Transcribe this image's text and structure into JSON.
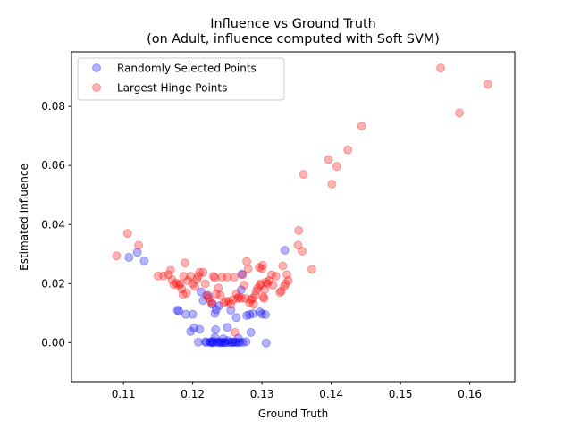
{
  "chart_data": {
    "type": "scatter",
    "title_line1": "Influence vs Ground Truth",
    "title_line2": "(on Adult, influence computed with Soft SVM)",
    "xlabel": "Ground Truth",
    "ylabel": "Estimated Influence",
    "xlim": [
      0.1025,
      0.1665
    ],
    "ylim": [
      -0.0132,
      0.0985
    ],
    "xticks": [
      0.11,
      0.12,
      0.13,
      0.14,
      0.15,
      0.16
    ],
    "xtick_labels": [
      "0.11",
      "0.12",
      "0.13",
      "0.14",
      "0.15",
      "0.16"
    ],
    "yticks": [
      0.0,
      0.02,
      0.04,
      0.06,
      0.08
    ],
    "ytick_labels": [
      "0.00",
      "0.02",
      "0.04",
      "0.06",
      "0.08"
    ],
    "legend_position": "upper left",
    "series": [
      {
        "name": "Randomly Selected Points",
        "color": "#0000ff",
        "points": [
          [
            0.1108,
            0.0289
          ],
          [
            0.112,
            0.0306
          ],
          [
            0.113,
            0.0277
          ],
          [
            0.1178,
            0.011
          ],
          [
            0.118,
            0.0107
          ],
          [
            0.119,
            0.0096
          ],
          [
            0.12,
            0.0096
          ],
          [
            0.1197,
            0.0038
          ],
          [
            0.1202,
            0.005
          ],
          [
            0.1208,
            0.0002
          ],
          [
            0.121,
            0.0045
          ],
          [
            0.1212,
            0.0172
          ],
          [
            0.1215,
            0.0143
          ],
          [
            0.1218,
            0.0003
          ],
          [
            0.122,
            0.0001
          ],
          [
            0.1222,
            0.016
          ],
          [
            0.1225,
            0.0002
          ],
          [
            0.1226,
            0.0002
          ],
          [
            0.1228,
            0.013
          ],
          [
            0.1228,
            0.0
          ],
          [
            0.123,
            0.0
          ],
          [
            0.123,
            0.0005
          ],
          [
            0.1232,
            0.0018
          ],
          [
            0.1232,
            0.0099
          ],
          [
            0.1233,
            0.0044
          ],
          [
            0.1234,
            0.0112
          ],
          [
            0.1235,
            0.0001
          ],
          [
            0.1237,
            0.0002
          ],
          [
            0.1238,
            0.0125
          ],
          [
            0.124,
            0.0
          ],
          [
            0.1241,
            0.0002
          ],
          [
            0.1243,
            0.0
          ],
          [
            0.1244,
            0.0013
          ],
          [
            0.1246,
            0.0001
          ],
          [
            0.1248,
            0.0
          ],
          [
            0.125,
            0.0052
          ],
          [
            0.1251,
            0.0007
          ],
          [
            0.1253,
            0.0001
          ],
          [
            0.1255,
            0.011
          ],
          [
            0.1256,
            0.0002
          ],
          [
            0.1257,
            0.0
          ],
          [
            0.126,
            0.0003
          ],
          [
            0.1262,
            0.0001
          ],
          [
            0.1263,
            0.0085
          ],
          [
            0.1265,
            0.0
          ],
          [
            0.1266,
            0.0015
          ],
          [
            0.1268,
            0.0002
          ],
          [
            0.127,
            0.0179
          ],
          [
            0.1271,
            0.0232
          ],
          [
            0.1272,
            0.0001
          ],
          [
            0.1277,
            0.0003
          ],
          [
            0.1278,
            0.0092
          ],
          [
            0.1282,
            0.0095
          ],
          [
            0.1284,
            0.0035
          ],
          [
            0.1287,
            0.0098
          ],
          [
            0.1297,
            0.0104
          ],
          [
            0.13,
            0.0097
          ],
          [
            0.1305,
            0.0095
          ],
          [
            0.1306,
            -0.0001
          ],
          [
            0.1333,
            0.0313
          ]
        ]
      },
      {
        "name": "Largest Hinge Points",
        "color": "#ff0000",
        "points": [
          [
            0.109,
            0.0294
          ],
          [
            0.1106,
            0.037
          ],
          [
            0.1122,
            0.033
          ],
          [
            0.115,
            0.0226
          ],
          [
            0.1158,
            0.0226
          ],
          [
            0.1165,
            0.023
          ],
          [
            0.1168,
            0.0245
          ],
          [
            0.117,
            0.0213
          ],
          [
            0.1173,
            0.0197
          ],
          [
            0.1176,
            0.0202
          ],
          [
            0.118,
            0.0195
          ],
          [
            0.1182,
            0.02
          ],
          [
            0.1184,
            0.0182
          ],
          [
            0.1186,
            0.0163
          ],
          [
            0.1187,
            0.0225
          ],
          [
            0.1189,
            0.027
          ],
          [
            0.1191,
            0.0168
          ],
          [
            0.1193,
            0.021
          ],
          [
            0.1197,
            0.0225
          ],
          [
            0.12,
            0.02
          ],
          [
            0.1203,
            0.019
          ],
          [
            0.1206,
            0.0215
          ],
          [
            0.1208,
            0.0225
          ],
          [
            0.121,
            0.0238
          ],
          [
            0.1215,
            0.0238
          ],
          [
            0.1218,
            0.02
          ],
          [
            0.122,
            0.016
          ],
          [
            0.1223,
            0.0152
          ],
          [
            0.1226,
            0.014
          ],
          [
            0.1228,
            0.0133
          ],
          [
            0.123,
            0.0225
          ],
          [
            0.1232,
            0.022
          ],
          [
            0.1234,
            0.0165
          ],
          [
            0.1237,
            0.0185
          ],
          [
            0.124,
            0.016
          ],
          [
            0.1242,
            0.0222
          ],
          [
            0.1245,
            0.0135
          ],
          [
            0.1248,
            0.014
          ],
          [
            0.125,
            0.0222
          ],
          [
            0.1252,
            0.014
          ],
          [
            0.1255,
            0.013
          ],
          [
            0.1258,
            0.0145
          ],
          [
            0.126,
            0.0222
          ],
          [
            0.1261,
            0.0035
          ],
          [
            0.1263,
            0.0165
          ],
          [
            0.1265,
            0.015
          ],
          [
            0.1267,
            0.0155
          ],
          [
            0.127,
            0.015
          ],
          [
            0.1272,
            0.023
          ],
          [
            0.1274,
            0.0195
          ],
          [
            0.1276,
            0.015
          ],
          [
            0.1278,
            0.0275
          ],
          [
            0.128,
            0.025
          ],
          [
            0.1282,
            0.0135
          ],
          [
            0.1284,
            0.0145
          ],
          [
            0.1286,
            0.015
          ],
          [
            0.1288,
            0.013
          ],
          [
            0.129,
            0.016
          ],
          [
            0.1292,
            0.0175
          ],
          [
            0.1294,
            0.0185
          ],
          [
            0.1296,
            0.0255
          ],
          [
            0.1297,
            0.0195
          ],
          [
            0.1298,
            0.02
          ],
          [
            0.13,
            0.025
          ],
          [
            0.1301,
            0.0262
          ],
          [
            0.1302,
            0.0155
          ],
          [
            0.1303,
            0.015
          ],
          [
            0.1304,
            0.018
          ],
          [
            0.1306,
            0.0205
          ],
          [
            0.1308,
            0.02
          ],
          [
            0.131,
            0.021
          ],
          [
            0.1314,
            0.023
          ],
          [
            0.1316,
            0.0195
          ],
          [
            0.132,
            0.0225
          ],
          [
            0.1326,
            0.017
          ],
          [
            0.1328,
            0.0175
          ],
          [
            0.133,
            0.026
          ],
          [
            0.1332,
            0.019
          ],
          [
            0.1334,
            0.02
          ],
          [
            0.1336,
            0.023
          ],
          [
            0.1338,
            0.021
          ],
          [
            0.1353,
            0.038
          ],
          [
            0.1352,
            0.033
          ],
          [
            0.1358,
            0.031
          ],
          [
            0.136,
            0.057
          ],
          [
            0.1372,
            0.0248
          ],
          [
            0.1396,
            0.062
          ],
          [
            0.1401,
            0.0537
          ],
          [
            0.1408,
            0.0597
          ],
          [
            0.1424,
            0.0653
          ],
          [
            0.1444,
            0.0733
          ],
          [
            0.1558,
            0.093
          ],
          [
            0.1585,
            0.0778
          ],
          [
            0.1626,
            0.0875
          ]
        ]
      }
    ]
  }
}
